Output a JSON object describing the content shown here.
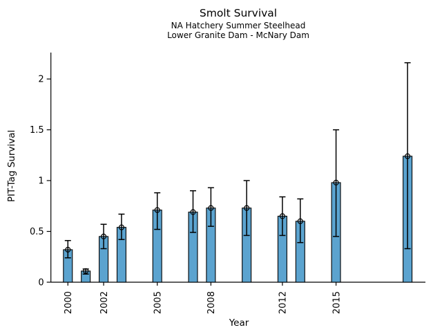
{
  "chart_data": {
    "type": "bar",
    "title": "Smolt Survival",
    "subtitle_line1": "NA Hatchery Summer Steelhead",
    "subtitle_line2": "Lower Granite Dam - McNary Dam",
    "xlabel": "Year",
    "ylabel": "PIT-Tag Survival",
    "xlim": [
      1999.05,
      2020.0
    ],
    "ylim": [
      0,
      2.26
    ],
    "grid": false,
    "legend": null,
    "bar_color": "#5ba3cf",
    "bar_edge_color": "#000000",
    "error_color": "#000000",
    "marker": "open-circle",
    "bar_width_years": 0.5,
    "xticks": [
      2000,
      2002,
      2005,
      2008,
      2012,
      2015
    ],
    "xtick_labels": [
      "2000",
      "2002",
      "2005",
      "2008",
      "2012",
      "2015"
    ],
    "yticks": [
      0,
      0.5,
      1,
      1.5,
      2
    ],
    "ytick_labels": [
      "0",
      "0.5",
      "1",
      "1.5",
      "2"
    ],
    "points": [
      {
        "year": 2000,
        "value": 0.32,
        "lo": 0.24,
        "hi": 0.41
      },
      {
        "year": 2001,
        "value": 0.11,
        "lo": 0.08,
        "hi": 0.13
      },
      {
        "year": 2002,
        "value": 0.45,
        "lo": 0.33,
        "hi": 0.57
      },
      {
        "year": 2003,
        "value": 0.54,
        "lo": 0.42,
        "hi": 0.67
      },
      {
        "year": 2005,
        "value": 0.71,
        "lo": 0.52,
        "hi": 0.88
      },
      {
        "year": 2007,
        "value": 0.69,
        "lo": 0.49,
        "hi": 0.9
      },
      {
        "year": 2008,
        "value": 0.73,
        "lo": 0.55,
        "hi": 0.93
      },
      {
        "year": 2010,
        "value": 0.73,
        "lo": 0.46,
        "hi": 1.0
      },
      {
        "year": 2012,
        "value": 0.65,
        "lo": 0.46,
        "hi": 0.84
      },
      {
        "year": 2013,
        "value": 0.6,
        "lo": 0.39,
        "hi": 0.82
      },
      {
        "year": 2015,
        "value": 0.98,
        "lo": 0.45,
        "hi": 1.5
      },
      {
        "year": 2019,
        "value": 1.24,
        "lo": 0.33,
        "hi": 2.16
      }
    ]
  }
}
